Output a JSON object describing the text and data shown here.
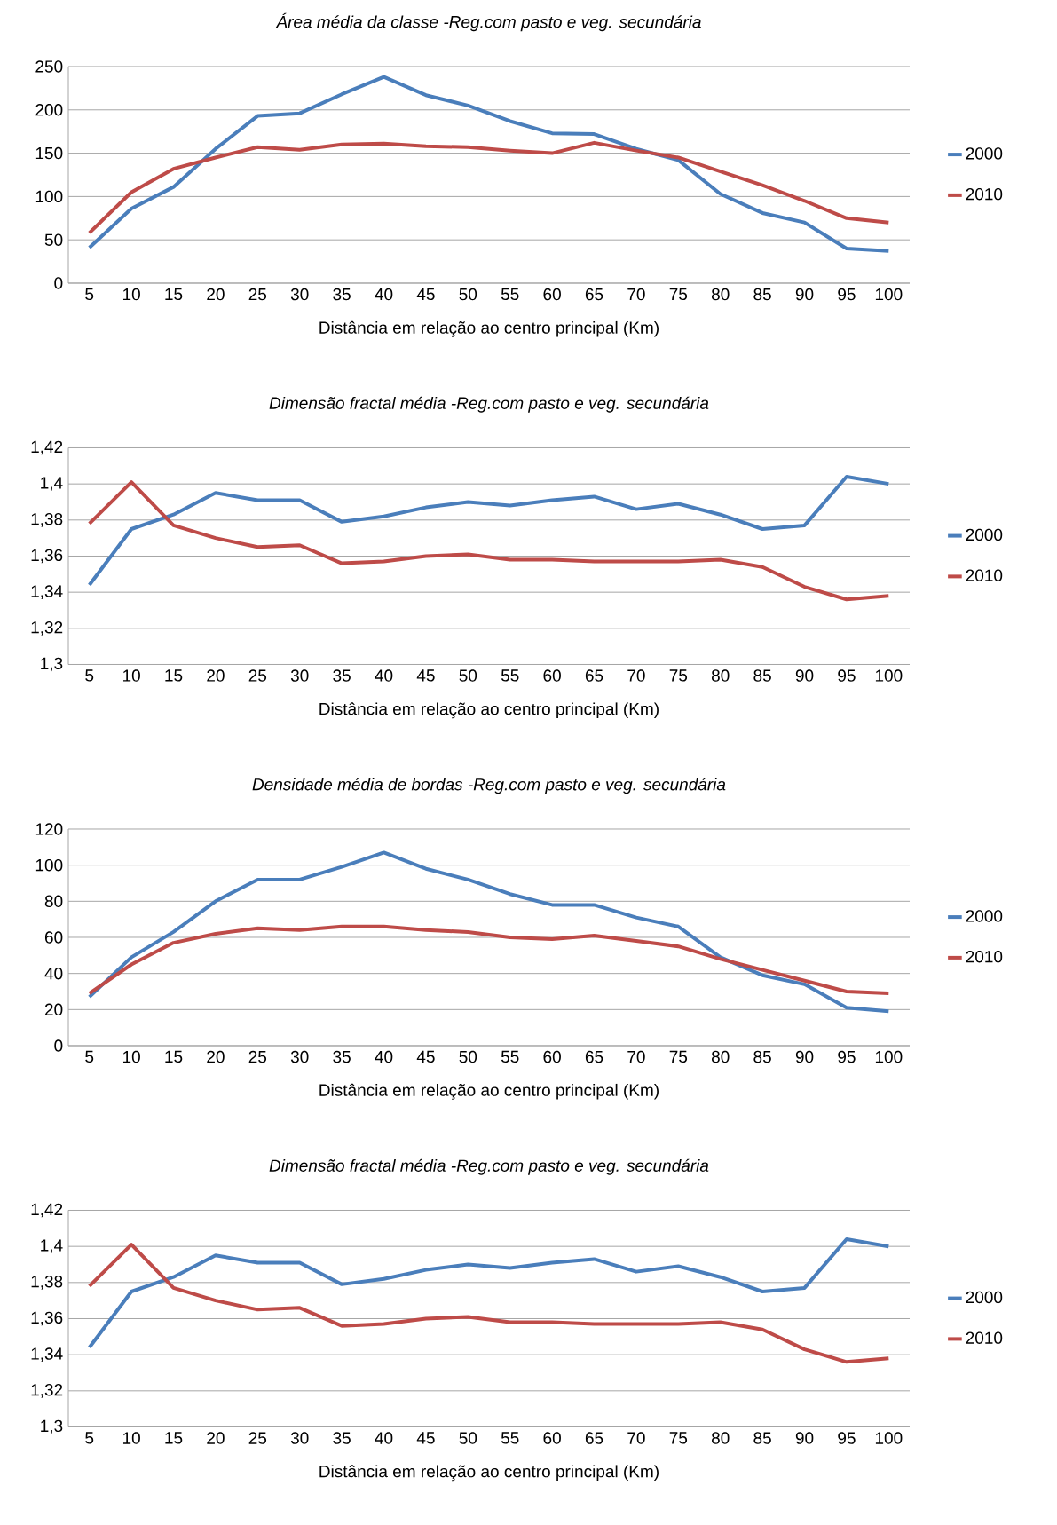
{
  "chart_data": [
    {
      "type": "line",
      "title": "*Área média da classe -Reg.com pasto e veg. secundária*",
      "xlabel": "Distância em relação ao centro principal (Km)",
      "categories": [
        "5",
        "10",
        "15",
        "20",
        "25",
        "30",
        "35",
        "40",
        "45",
        "50",
        "55",
        "60",
        "65",
        "70",
        "75",
        "80",
        "85",
        "90",
        "95",
        "100"
      ],
      "ylim": [
        0,
        250
      ],
      "yticks": [
        0,
        50,
        100,
        150,
        200,
        250
      ],
      "grid": "y",
      "legend": "right",
      "marker": "none",
      "line_style": "solid",
      "series": [
        {
          "name": "2000",
          "color": "#4a7ebb",
          "values": [
            41,
            86,
            111,
            155,
            193,
            196,
            218,
            238,
            217,
            205,
            187,
            173,
            172,
            155,
            142,
            103,
            81,
            70,
            40,
            37
          ]
        },
        {
          "name": "2010",
          "color": "#be4b48",
          "values": [
            58,
            105,
            132,
            145,
            157,
            154,
            160,
            161,
            158,
            157,
            153,
            150,
            162,
            153,
            145,
            129,
            113,
            95,
            75,
            70
          ]
        }
      ]
    },
    {
      "type": "line",
      "title": "*Dimensão fractal média -Reg.com pasto e veg. secundária*",
      "xlabel": "Distância em relação ao centro principal (Km)",
      "categories": [
        "5",
        "10",
        "15",
        "20",
        "25",
        "30",
        "35",
        "40",
        "45",
        "50",
        "55",
        "60",
        "65",
        "70",
        "75",
        "80",
        "85",
        "90",
        "95",
        "100"
      ],
      "ylim": [
        1.3,
        1.42
      ],
      "yticks": [
        {
          "value": 1.3,
          "label": "1,3"
        },
        {
          "value": 1.32,
          "label": "1,32"
        },
        {
          "value": 1.34,
          "label": "1,34"
        },
        {
          "value": 1.36,
          "label": "1,36"
        },
        {
          "value": 1.38,
          "label": "1,38"
        },
        {
          "value": 1.4,
          "label": "1,4"
        },
        {
          "value": 1.42,
          "label": "1,42"
        }
      ],
      "grid": "y",
      "legend": "right",
      "marker": "none",
      "line_style": "solid",
      "series": [
        {
          "name": "2000",
          "color": "#4a7ebb",
          "values": [
            1.344,
            1.375,
            1.383,
            1.395,
            1.391,
            1.391,
            1.379,
            1.382,
            1.387,
            1.39,
            1.388,
            1.391,
            1.393,
            1.386,
            1.389,
            1.383,
            1.375,
            1.377,
            1.404,
            1.4
          ]
        },
        {
          "name": "2010",
          "color": "#be4b48",
          "values": [
            1.378,
            1.401,
            1.377,
            1.37,
            1.365,
            1.366,
            1.356,
            1.357,
            1.36,
            1.361,
            1.358,
            1.358,
            1.357,
            1.357,
            1.357,
            1.358,
            1.354,
            1.343,
            1.336,
            1.338
          ]
        }
      ]
    },
    {
      "type": "line",
      "title": "*Densidade média de bordas -Reg.com pasto e veg. secundária*",
      "xlabel": "Distância em relação ao centro principal (Km)",
      "categories": [
        "5",
        "10",
        "15",
        "20",
        "25",
        "30",
        "35",
        "40",
        "45",
        "50",
        "55",
        "60",
        "65",
        "70",
        "75",
        "80",
        "85",
        "90",
        "95",
        "100"
      ],
      "ylim": [
        0,
        120
      ],
      "yticks": [
        0,
        20,
        40,
        60,
        80,
        100,
        120
      ],
      "grid": "y",
      "legend": "right",
      "marker": "none",
      "line_style": "solid",
      "series": [
        {
          "name": "2000",
          "color": "#4a7ebb",
          "values": [
            27,
            49,
            63,
            80,
            92,
            92,
            99,
            107,
            98,
            92,
            84,
            78,
            78,
            71,
            66,
            49,
            39,
            34,
            21,
            19
          ]
        },
        {
          "name": "2010",
          "color": "#be4b48",
          "values": [
            29,
            45,
            57,
            62,
            65,
            64,
            66,
            66,
            64,
            63,
            60,
            59,
            61,
            58,
            55,
            48,
            42,
            36,
            30,
            29
          ]
        }
      ]
    },
    {
      "type": "line",
      "title": "*Dimensão fractal média -Reg.com pasto e veg. secundária*",
      "xlabel": "Distância em relação ao centro principal (Km)",
      "categories": [
        "5",
        "10",
        "15",
        "20",
        "25",
        "30",
        "35",
        "40",
        "45",
        "50",
        "55",
        "60",
        "65",
        "70",
        "75",
        "80",
        "85",
        "90",
        "95",
        "100"
      ],
      "ylim": [
        1.3,
        1.42
      ],
      "yticks": [
        {
          "value": 1.3,
          "label": "1,3"
        },
        {
          "value": 1.32,
          "label": "1,32"
        },
        {
          "value": 1.34,
          "label": "1,34"
        },
        {
          "value": 1.36,
          "label": "1,36"
        },
        {
          "value": 1.38,
          "label": "1,38"
        },
        {
          "value": 1.4,
          "label": "1,4"
        },
        {
          "value": 1.42,
          "label": "1,42"
        }
      ],
      "grid": "y",
      "legend": "right",
      "marker": "none",
      "line_style": "solid",
      "series": [
        {
          "name": "2000",
          "color": "#4a7ebb",
          "values": [
            1.344,
            1.375,
            1.383,
            1.395,
            1.391,
            1.391,
            1.379,
            1.382,
            1.387,
            1.39,
            1.388,
            1.391,
            1.393,
            1.386,
            1.389,
            1.383,
            1.375,
            1.377,
            1.404,
            1.4
          ]
        },
        {
          "name": "2010",
          "color": "#be4b48",
          "values": [
            1.378,
            1.401,
            1.377,
            1.37,
            1.365,
            1.366,
            1.356,
            1.357,
            1.36,
            1.361,
            1.358,
            1.358,
            1.357,
            1.357,
            1.357,
            1.358,
            1.354,
            1.343,
            1.336,
            1.338
          ]
        }
      ]
    }
  ]
}
